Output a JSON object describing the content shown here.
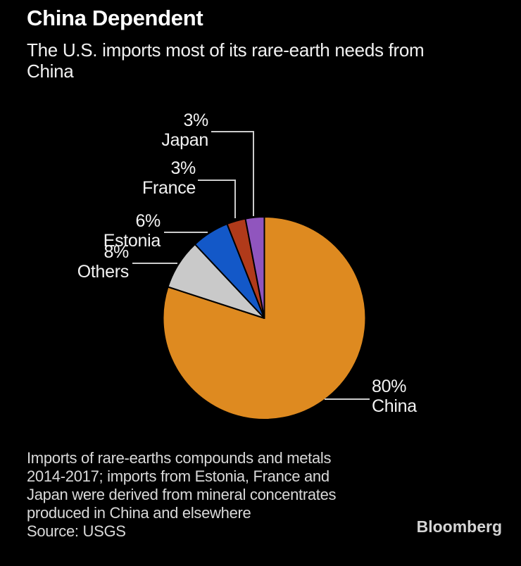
{
  "header": {
    "title": "China Dependent",
    "subtitle_lines": [
      "The U.S. imports most of its rare-earth needs from",
      "China"
    ]
  },
  "chart_data": {
    "type": "pie",
    "title": "China Dependent",
    "subtitle": "The U.S. imports most of its rare-earth needs from China",
    "unit": "%",
    "direction": "clockwise",
    "start_angle": "12 o'clock",
    "slices": [
      {
        "label": "China",
        "value": 80,
        "display": "80%",
        "color": "#DE8A20"
      },
      {
        "label": "Others",
        "value": 8,
        "display": "8%",
        "color": "#C9C9C9"
      },
      {
        "label": "Estonia",
        "value": 6,
        "display": "6%",
        "color": "#1358C8"
      },
      {
        "label": "France",
        "value": 3,
        "display": "3%",
        "color": "#B03A1A"
      },
      {
        "label": "Japan",
        "value": 3,
        "display": "3%",
        "color": "#9055BE"
      }
    ],
    "callouts": {
      "japan": {
        "pct": "3%",
        "name": "Japan"
      },
      "france": {
        "pct": "3%",
        "name": "France"
      },
      "estonia": {
        "pct": "6%",
        "name": "Estonia"
      },
      "others": {
        "pct": "8%",
        "name": "Others"
      },
      "china": {
        "pct": "80%",
        "name": "China"
      }
    },
    "colors": {
      "background": "#000000",
      "leader_line": "#CCCCCC",
      "slice_stroke": "#000000",
      "text": "#F2F2F2"
    }
  },
  "footer": {
    "note_lines": [
      "Imports of rare-earths compounds and metals",
      "2014-2017; imports from Estonia, France and",
      "Japan were derived from mineral concentrates",
      "produced in China and elsewhere"
    ],
    "source": "Source: USGS",
    "brand": "Bloomberg"
  }
}
